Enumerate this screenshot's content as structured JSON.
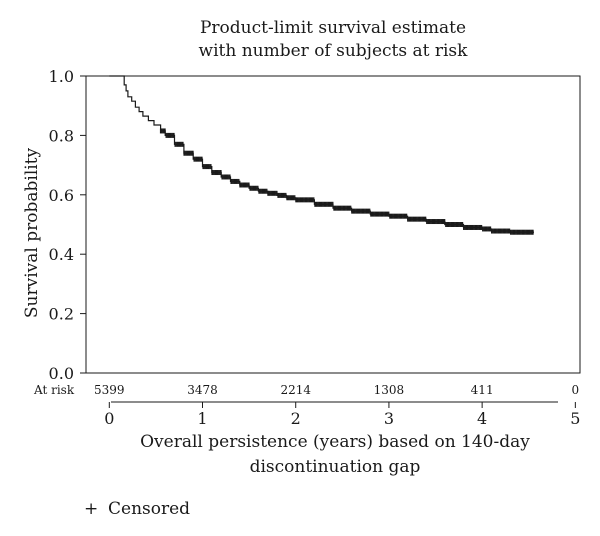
{
  "chart_data": {
    "type": "line",
    "title": [
      "Product-limit survival estimate",
      "with number of subjects at risk"
    ],
    "xlabel": [
      "Overall persistence (years) based on 140-day",
      "discontinuation gap"
    ],
    "ylabel": "Survival probability",
    "xlim": [
      -0.25,
      5.05
    ],
    "ylim": [
      0.0,
      1.0
    ],
    "x_ticks": [
      0,
      1,
      2,
      3,
      4,
      5
    ],
    "y_ticks": [
      0.0,
      0.2,
      0.4,
      0.6,
      0.8,
      1.0
    ],
    "x_tick_labels": [
      "0",
      "1",
      "2",
      "3",
      "4",
      "5"
    ],
    "y_tick_labels": [
      "0.0",
      "0.2",
      "0.4",
      "0.6",
      "0.8",
      "1.0"
    ],
    "grid": false,
    "legend": {
      "marker": "+",
      "label": "Censored",
      "position": "bottom-left"
    },
    "at_risk": {
      "label": "At risk",
      "times": [
        0,
        1,
        2,
        3,
        4,
        5
      ],
      "counts": [
        "5399",
        "3478",
        "2214",
        "1308",
        "411",
        "0"
      ]
    },
    "series": [
      {
        "x": [
          0.0,
          0.14,
          0.16,
          0.18,
          0.2,
          0.24,
          0.28,
          0.32,
          0.36,
          0.42,
          0.48,
          0.55,
          0.6,
          0.7,
          0.8,
          0.9,
          1.0,
          1.1,
          1.2,
          1.3,
          1.4,
          1.5,
          1.6,
          1.7,
          1.8,
          1.9,
          2.0,
          2.2,
          2.4,
          2.6,
          2.8,
          3.0,
          3.2,
          3.4,
          3.6,
          3.8,
          4.0,
          4.1,
          4.3,
          4.55
        ],
        "y": [
          1.0,
          1.0,
          0.97,
          0.95,
          0.93,
          0.915,
          0.895,
          0.88,
          0.865,
          0.85,
          0.835,
          0.815,
          0.8,
          0.77,
          0.74,
          0.72,
          0.695,
          0.675,
          0.66,
          0.645,
          0.633,
          0.622,
          0.612,
          0.605,
          0.598,
          0.59,
          0.583,
          0.568,
          0.555,
          0.545,
          0.535,
          0.528,
          0.518,
          0.51,
          0.5,
          0.49,
          0.485,
          0.478,
          0.474,
          0.472
        ]
      }
    ],
    "censored_from": 0.55
  }
}
